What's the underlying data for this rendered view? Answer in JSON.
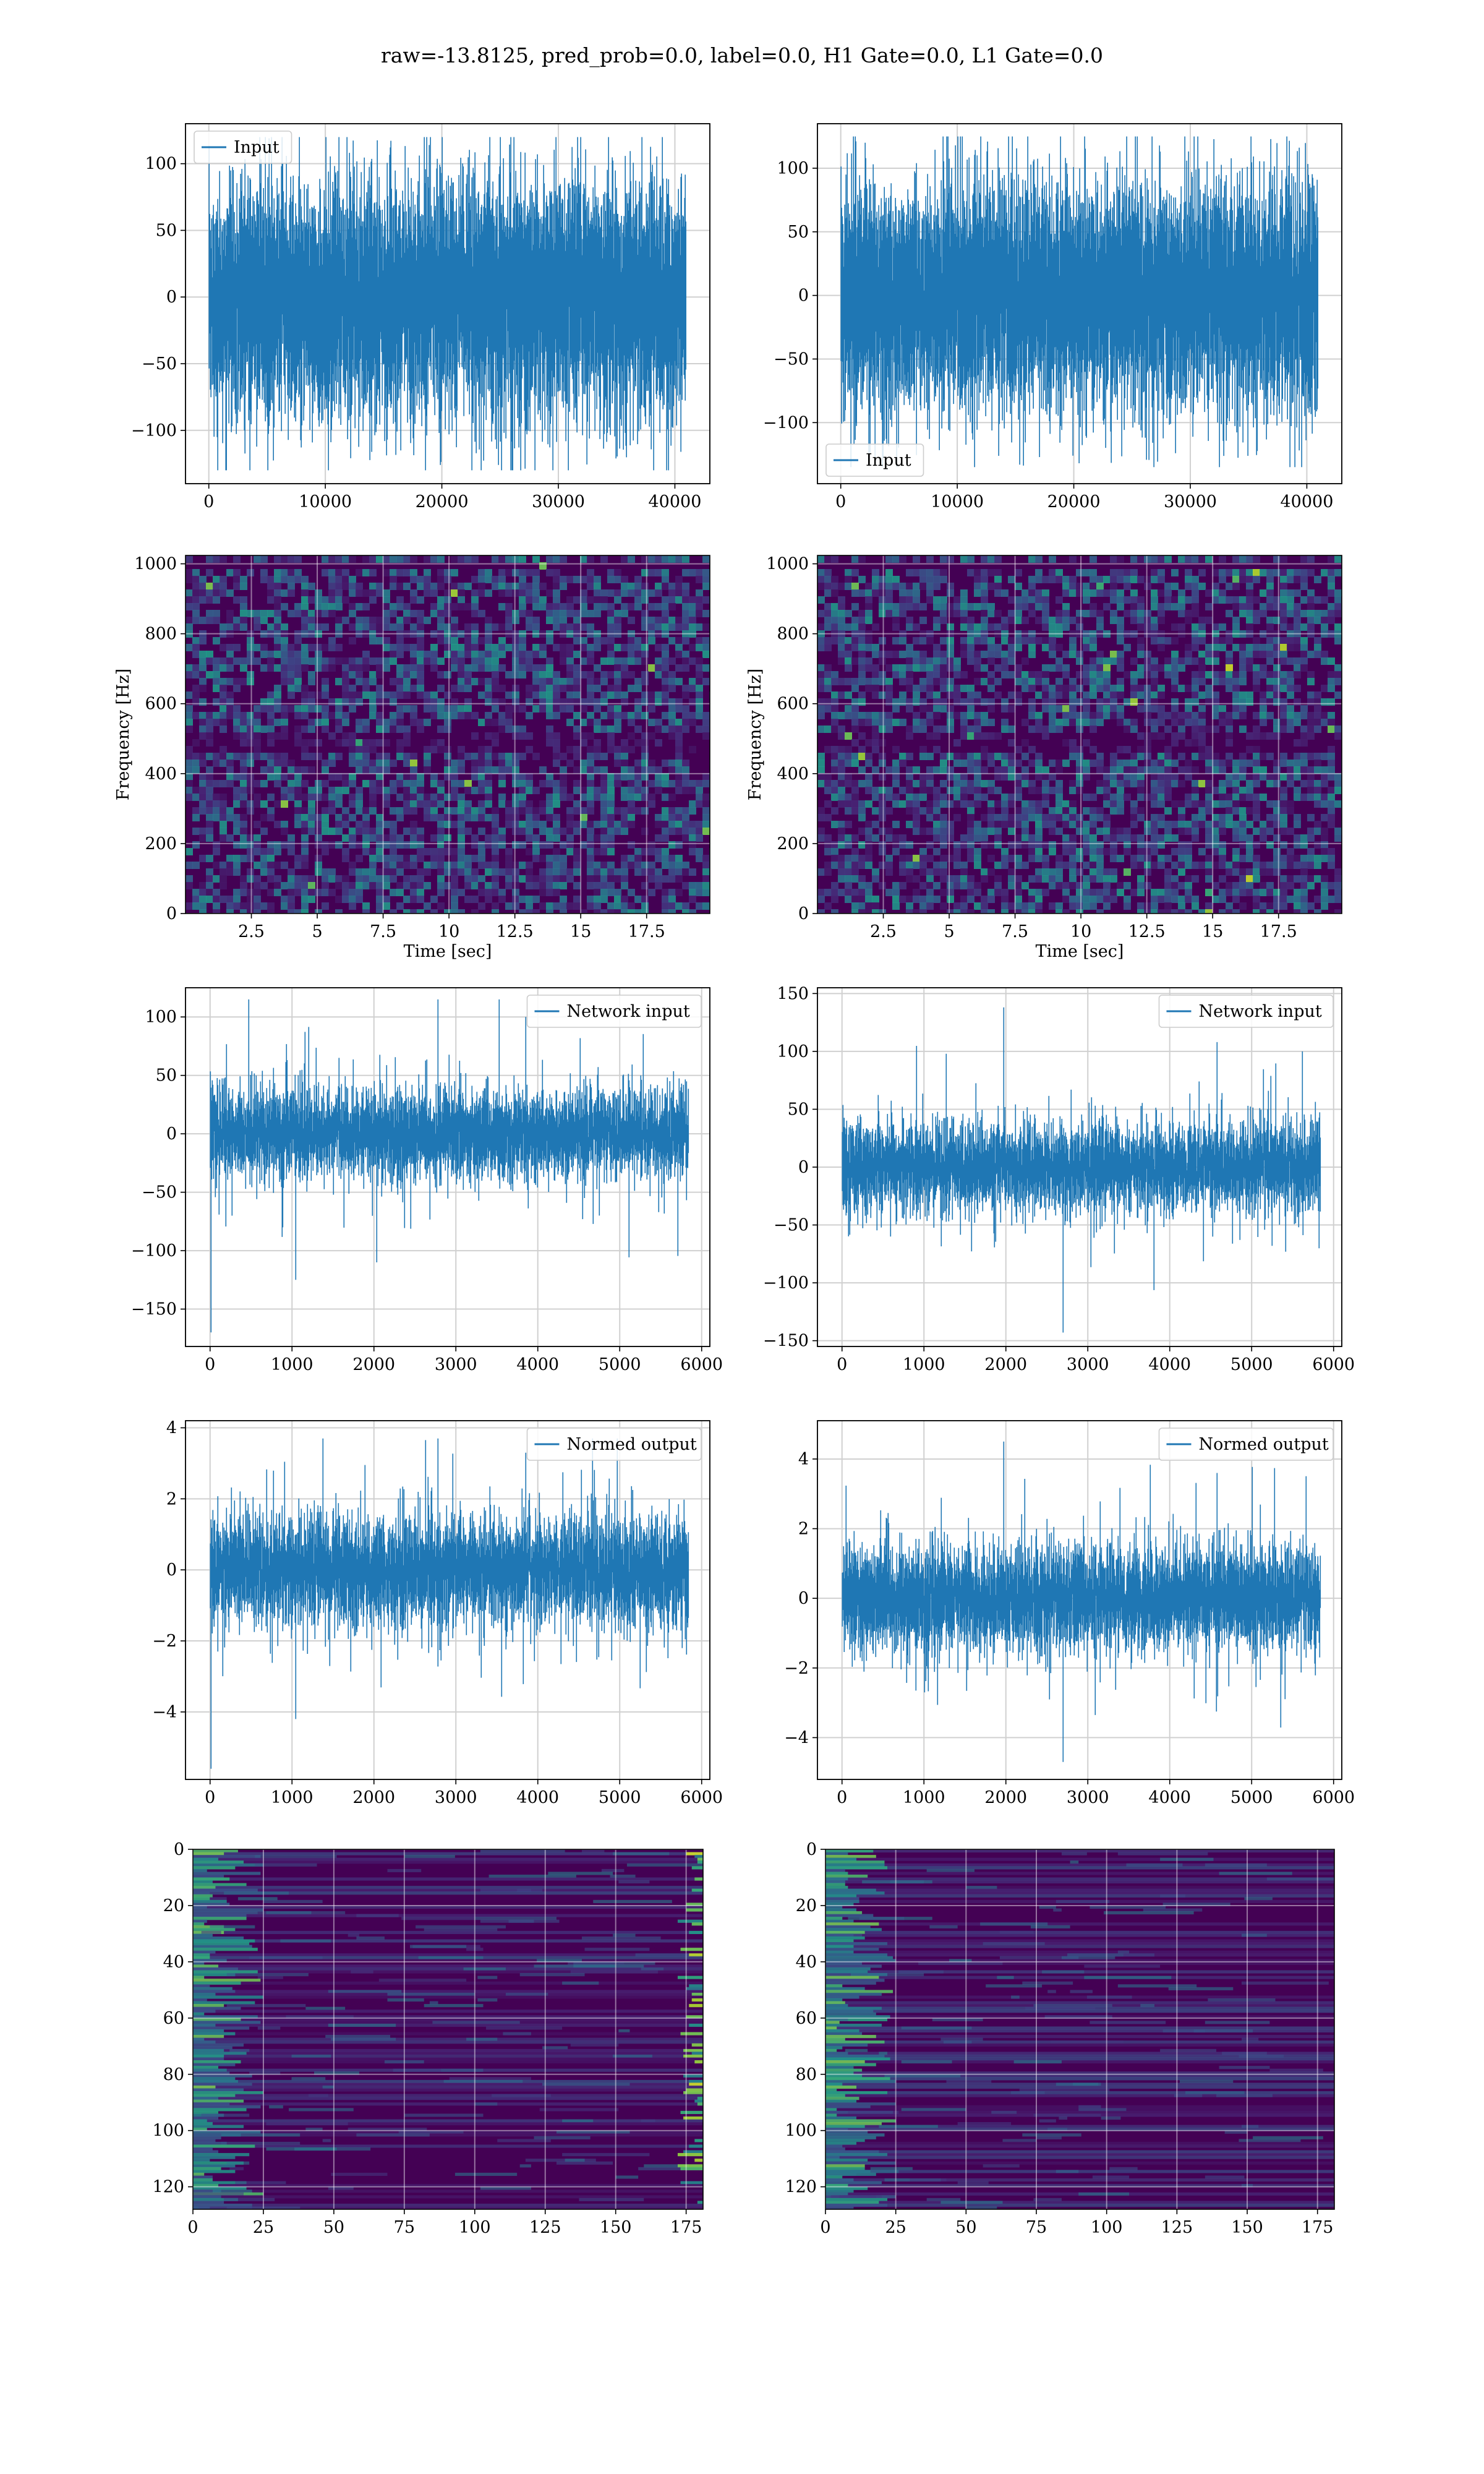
{
  "title": "raw=-13.8125, pred_prob=0.0, label=0.0, H1 Gate=0.0, L1 Gate=0.0",
  "colors": {
    "line": "#1f77b4",
    "grid": "#d0d0d0",
    "viridis_dark": "#440154",
    "viridis_mid": "#21918c",
    "viridis_bright": "#fde725"
  },
  "chart_data": [
    {
      "type": "line",
      "legend": [
        "Input"
      ],
      "legend_loc": "upper left",
      "xlim": [
        -2000,
        43000
      ],
      "ylim": [
        -140,
        130
      ],
      "xticks": [
        0,
        10000,
        20000,
        30000,
        40000
      ],
      "yticks": [
        100,
        50,
        0,
        -50,
        -100
      ],
      "xlabel": "",
      "ylabel": "",
      "signal": {
        "n": 40960,
        "x_start": 0,
        "x_end": 40960,
        "std": 23,
        "max": 120,
        "min": -130,
        "peaks": []
      }
    },
    {
      "type": "line",
      "legend": [
        "Input"
      ],
      "legend_loc": "lower left",
      "xlim": [
        -2000,
        43000
      ],
      "ylim": [
        -148,
        135
      ],
      "xticks": [
        0,
        10000,
        20000,
        30000,
        40000
      ],
      "yticks": [
        100,
        50,
        0,
        -50,
        -100
      ],
      "xlabel": "",
      "ylabel": "",
      "signal": {
        "n": 40960,
        "x_start": 0,
        "x_end": 40960,
        "std": 23,
        "max": 125,
        "min": -135,
        "peaks": []
      }
    },
    {
      "type": "heatmap",
      "xlim": [
        0,
        19.9
      ],
      "ylim": [
        0,
        1024
      ],
      "xticks": [
        2.5,
        5.0,
        7.5,
        10.0,
        12.5,
        15.0,
        17.5
      ],
      "yticks": [
        0,
        200,
        400,
        600,
        800,
        1000
      ],
      "xlabel": "Time [sec]",
      "ylabel": "Frequency [Hz]",
      "dark_band": [
        470,
        530
      ],
      "thin_line_y": 1000
    },
    {
      "type": "heatmap",
      "xlim": [
        0,
        19.9
      ],
      "ylim": [
        0,
        1024
      ],
      "xticks": [
        2.5,
        5.0,
        7.5,
        10.0,
        12.5,
        15.0,
        17.5
      ],
      "yticks": [
        0,
        200,
        400,
        600,
        800,
        1000
      ],
      "xlabel": "Time [sec]",
      "ylabel": "Frequency [Hz]",
      "dark_band": [
        470,
        530
      ],
      "thin_line_y": 1000
    },
    {
      "type": "line",
      "legend": [
        "Network input"
      ],
      "legend_loc": "upper right",
      "xlim": [
        -300,
        6100
      ],
      "ylim": [
        -182,
        125
      ],
      "xticks": [
        0,
        1000,
        2000,
        3000,
        4000,
        5000,
        6000
      ],
      "yticks": [
        100,
        50,
        0,
        -50,
        -100,
        -150
      ],
      "xlabel": "",
      "ylabel": "",
      "signal": {
        "n": 5840,
        "x_start": 0,
        "x_end": 5840,
        "std": 20,
        "max": 115,
        "min": -170,
        "peaks": [
          [
            10,
            -170
          ],
          [
            1040,
            -125
          ],
          [
            2030,
            -110
          ],
          [
            2780,
            115
          ],
          [
            3850,
            100
          ]
        ]
      }
    },
    {
      "type": "line",
      "legend": [
        "Network input"
      ],
      "legend_loc": "upper right",
      "xlim": [
        -300,
        6100
      ],
      "ylim": [
        -155,
        155
      ],
      "xticks": [
        0,
        1000,
        2000,
        3000,
        4000,
        5000,
        6000
      ],
      "yticks": [
        150,
        100,
        50,
        0,
        -50,
        -100,
        -150
      ],
      "xlabel": "",
      "ylabel": "",
      "signal": {
        "n": 5840,
        "x_start": 0,
        "x_end": 5840,
        "std": 20,
        "max": 138,
        "min": -143,
        "peaks": [
          [
            1970,
            138
          ],
          [
            2700,
            -143
          ],
          [
            4580,
            108
          ],
          [
            5620,
            100
          ]
        ]
      }
    },
    {
      "type": "line",
      "legend": [
        "Normed output"
      ],
      "legend_loc": "upper right",
      "xlim": [
        -300,
        6100
      ],
      "ylim": [
        -5.9,
        4.2
      ],
      "xticks": [
        0,
        1000,
        2000,
        3000,
        4000,
        5000,
        6000
      ],
      "yticks": [
        4,
        2,
        0,
        -2,
        -4
      ],
      "xlabel": "",
      "ylabel": "",
      "signal": {
        "n": 5840,
        "x_start": 0,
        "x_end": 5840,
        "std": 0.8,
        "max": 3.7,
        "min": -5.6,
        "peaks": [
          [
            10,
            -5.6
          ],
          [
            1040,
            -4.2
          ],
          [
            2780,
            3.7
          ],
          [
            3850,
            3.3
          ]
        ]
      }
    },
    {
      "type": "line",
      "legend": [
        "Normed output"
      ],
      "legend_loc": "upper right",
      "xlim": [
        -300,
        6100
      ],
      "ylim": [
        -5.2,
        5.1
      ],
      "xticks": [
        0,
        1000,
        2000,
        3000,
        4000,
        5000,
        6000
      ],
      "yticks": [
        4,
        2,
        0,
        -2,
        -4
      ],
      "xlabel": "",
      "ylabel": "",
      "signal": {
        "n": 5840,
        "x_start": 0,
        "x_end": 5840,
        "std": 0.8,
        "max": 4.5,
        "min": -4.7,
        "peaks": [
          [
            1970,
            4.5
          ],
          [
            2700,
            -4.7
          ],
          [
            4580,
            3.6
          ]
        ]
      }
    },
    {
      "type": "heatmap",
      "xlim": [
        0,
        181
      ],
      "ylim": [
        128,
        0
      ],
      "xticks": [
        0,
        25,
        50,
        75,
        100,
        125,
        150,
        175
      ],
      "yticks": [
        0,
        20,
        40,
        60,
        80,
        100,
        120
      ],
      "xlabel": "",
      "ylabel": "",
      "rows": 128,
      "cols": 181,
      "bright_near_start": true,
      "bright_near_end": true
    },
    {
      "type": "heatmap",
      "xlim": [
        0,
        181
      ],
      "ylim": [
        128,
        0
      ],
      "xticks": [
        0,
        25,
        50,
        75,
        100,
        125,
        150,
        175
      ],
      "yticks": [
        0,
        20,
        40,
        60,
        80,
        100,
        120
      ],
      "xlabel": "",
      "ylabel": "",
      "rows": 128,
      "cols": 181,
      "bright_near_start": true,
      "bright_near_end": false
    }
  ]
}
